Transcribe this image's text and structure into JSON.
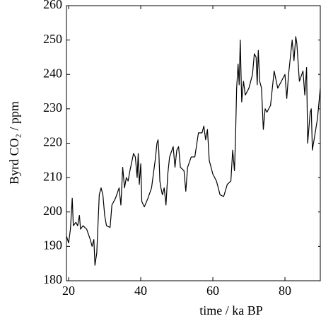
{
  "chart_data": {
    "type": "line",
    "xlabel": "time / ka BP",
    "ylabel": "Byrd CO₂ / ppm",
    "x": [
      19.4,
      20,
      20.5,
      21,
      21.3,
      22,
      22.5,
      23,
      23.3,
      24,
      25,
      26,
      26.5,
      27,
      27.3,
      27.8,
      28.5,
      29,
      29.5,
      30,
      30.5,
      31.5,
      32,
      33,
      34,
      34.5,
      35,
      35.5,
      36,
      36.5,
      37,
      38,
      38.5,
      39,
      39.3,
      39.6,
      40,
      40.3,
      41,
      42,
      43,
      44,
      44.5,
      44.8,
      45,
      45.3,
      45.6,
      46,
      46.5,
      47,
      47.5,
      48,
      49,
      49.5,
      50,
      50.5,
      51,
      52,
      52.5,
      53,
      54,
      55,
      56,
      57,
      57.5,
      58,
      58.5,
      59,
      60,
      61,
      62,
      63,
      64,
      65,
      65.5,
      66,
      66.3,
      66.6,
      67,
      67.3,
      67.6,
      68,
      68.5,
      69,
      70,
      71,
      71.5,
      72,
      72.3,
      72.6,
      73,
      73.5,
      74,
      74.5,
      75,
      76,
      77,
      78,
      79,
      80,
      80.5,
      81,
      82,
      82.5,
      83,
      83.3,
      84,
      85,
      85.5,
      86,
      86.3,
      87,
      87.3,
      87.6,
      89,
      89.8
    ],
    "series": [
      {
        "name": "Byrd CO2",
        "color": "#000000",
        "values": [
          193,
          191,
          195,
          204,
          196,
          197,
          196,
          199,
          195,
          196,
          195,
          192,
          190,
          192,
          184.5,
          188,
          205,
          207,
          205,
          199,
          196,
          195.5,
          202,
          204,
          207,
          202,
          213,
          207,
          210,
          209,
          212,
          217,
          216,
          210,
          217,
          208,
          214,
          203,
          201.5,
          204,
          207,
          215,
          220,
          221,
          218,
          209,
          207,
          205,
          207,
          202,
          211,
          216,
          219,
          213,
          218,
          219,
          213,
          212,
          206,
          213,
          216,
          216,
          223,
          223,
          225,
          221,
          224,
          215,
          211,
          209,
          205,
          204.5,
          208,
          209,
          218,
          212,
          222,
          236,
          243,
          237,
          250,
          232,
          238,
          234,
          236,
          240,
          246,
          245,
          237,
          247,
          238,
          236,
          224,
          230,
          229,
          231,
          241,
          236,
          238,
          240,
          233,
          240,
          250,
          244,
          251,
          249,
          238,
          241,
          234,
          242,
          220,
          229,
          230,
          218,
          227,
          236
        ]
      }
    ],
    "xlim": [
      19.4,
      89.8
    ],
    "ylim": [
      180,
      260
    ],
    "xticks": [
      20,
      40,
      60,
      80
    ],
    "yticks": [
      180,
      190,
      200,
      210,
      220,
      230,
      240,
      250,
      260
    ]
  }
}
